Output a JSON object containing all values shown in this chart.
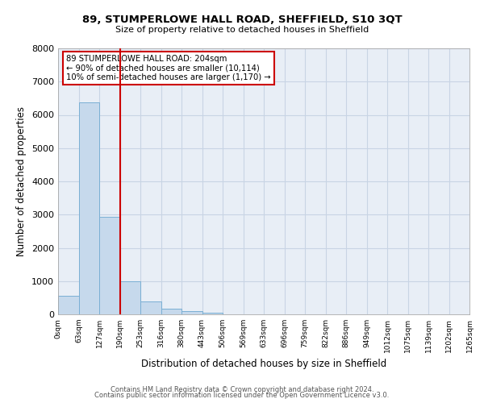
{
  "title": "89, STUMPERLOWE HALL ROAD, SHEFFIELD, S10 3QT",
  "subtitle": "Size of property relative to detached houses in Sheffield",
  "xlabel": "Distribution of detached houses by size in Sheffield",
  "ylabel": "Number of detached properties",
  "bar_values": [
    560,
    6380,
    2940,
    1000,
    390,
    175,
    95,
    50,
    0,
    0,
    0,
    0,
    0,
    0,
    0,
    0,
    0,
    0,
    0,
    0
  ],
  "bin_labels": [
    "0sqm",
    "63sqm",
    "127sqm",
    "190sqm",
    "253sqm",
    "316sqm",
    "380sqm",
    "443sqm",
    "506sqm",
    "569sqm",
    "633sqm",
    "696sqm",
    "759sqm",
    "822sqm",
    "886sqm",
    "949sqm",
    "1012sqm",
    "1075sqm",
    "1139sqm",
    "1202sqm",
    "1265sqm"
  ],
  "bar_color": "#c6d9ec",
  "bar_edge_color": "#7aafd4",
  "vline_color": "#cc0000",
  "ylim": [
    0,
    8000
  ],
  "yticks": [
    0,
    1000,
    2000,
    3000,
    4000,
    5000,
    6000,
    7000,
    8000
  ],
  "annotation_line1": "89 STUMPERLOWE HALL ROAD: 204sqm",
  "annotation_line2": "← 90% of detached houses are smaller (10,114)",
  "annotation_line3": "10% of semi-detached houses are larger (1,170) →",
  "annotation_box_color": "#cc0000",
  "grid_color": "#c8d4e4",
  "bg_color": "#e8eef6",
  "footer1": "Contains HM Land Registry data © Crown copyright and database right 2024.",
  "footer2": "Contains public sector information licensed under the Open Government Licence v3.0."
}
